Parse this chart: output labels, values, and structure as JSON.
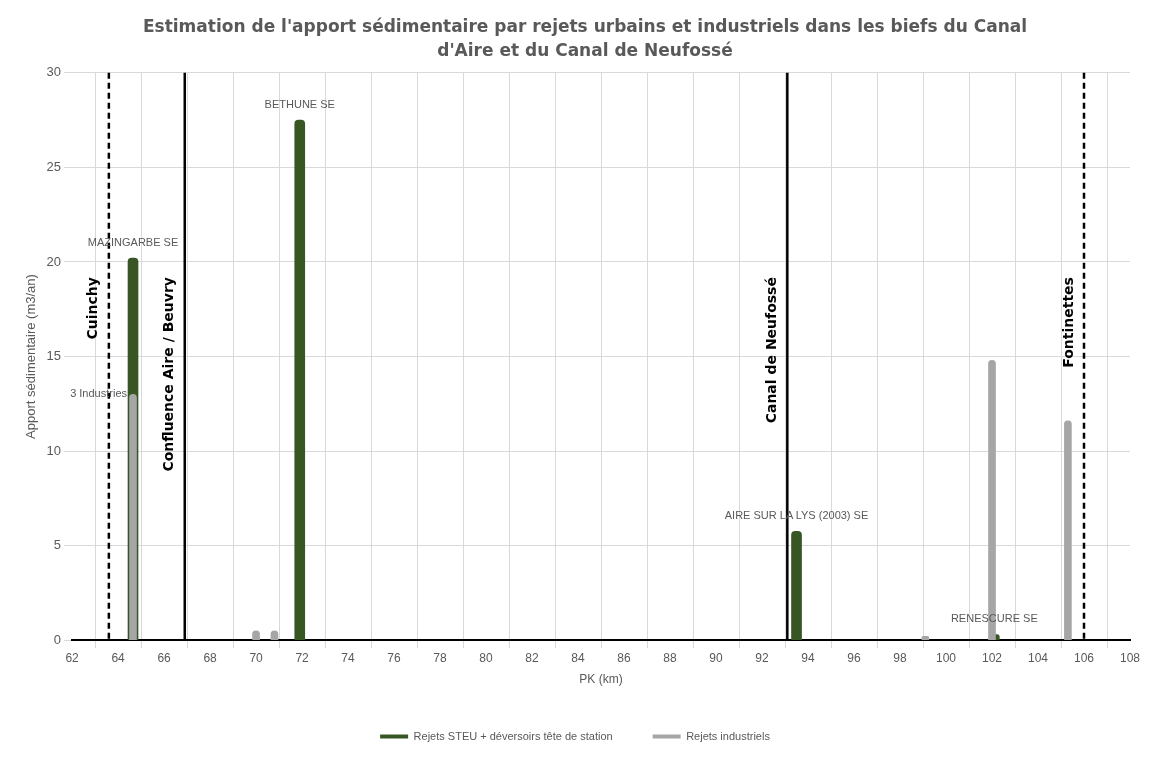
{
  "chart_data": {
    "type": "bar",
    "title": "Estimation de l'apport sédimentaire par rejets urbains et industriels dans les biefs du Canal d'Aire et du Canal de Neufossé",
    "xlabel": "PK (km)",
    "ylabel": "Apport sédimentaire (m3/an)",
    "series": [
      {
        "name": "Rejets STEU + déversoirs tête de station",
        "color": "#375623",
        "x": [
          64.65,
          71.9,
          93.5,
          102.1
        ],
        "values": [
          20.2,
          27.5,
          5.75,
          0.3
        ]
      },
      {
        "name": "Rejets industriels",
        "color": "#a6a6a6",
        "x": [
          64.65,
          70.0,
          70.8,
          99.1,
          102.0,
          105.3
        ],
        "values": [
          13,
          0.5,
          0.5,
          0.2,
          14.8,
          11.6
        ]
      }
    ],
    "annotations": [
      {
        "text": "MAZINGARBE SE",
        "x": 64.65,
        "y": 20.2
      },
      {
        "text": "3 Industries",
        "x": 64.65,
        "y": 13
      },
      {
        "text": "BETHUNE SE",
        "x": 71.9,
        "y": 27.5
      },
      {
        "text": "AIRE SUR LA LYS (2003) SE",
        "x": 93.5,
        "y": 5.75
      },
      {
        "text": "RENESCURE SE",
        "x": 102.1,
        "y": 0.3
      }
    ],
    "ref_lines": [
      {
        "axis": "x",
        "value": 63.6,
        "label": "Cuinchy",
        "color": "#000000",
        "line_style": "dashed"
      },
      {
        "axis": "x",
        "value": 66.9,
        "label": "Confluence Aire / Beuvry",
        "color": "#000000",
        "line_style": "solid"
      },
      {
        "axis": "x",
        "value": 93.1,
        "label": "Canal de Neufossé",
        "color": "#000000",
        "line_style": "solid"
      },
      {
        "axis": "x",
        "value": 106,
        "label": "Fontinettes",
        "color": "#000000",
        "line_style": "dashed"
      }
    ],
    "xlim": [
      62,
      108
    ],
    "xticks": [
      62,
      64,
      66,
      68,
      70,
      72,
      74,
      76,
      78,
      80,
      82,
      84,
      86,
      88,
      90,
      92,
      94,
      96,
      98,
      100,
      102,
      104,
      106,
      108
    ],
    "ylim": [
      0,
      30
    ],
    "yticks": [
      0,
      5,
      10,
      15,
      20,
      25,
      30
    ],
    "grid": true,
    "legend": "bottom"
  }
}
